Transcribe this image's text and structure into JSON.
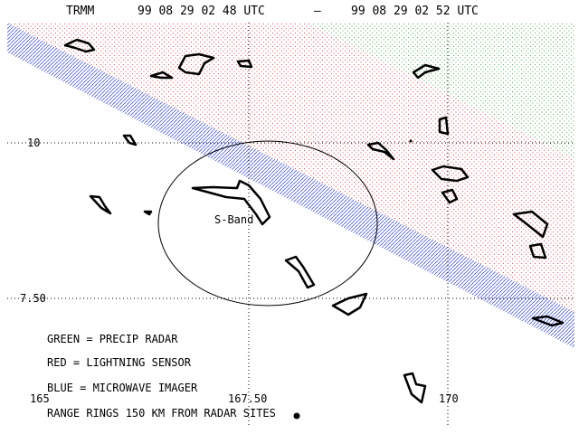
{
  "header": {
    "satellite": "TRMM",
    "start": "99 08 29 02 48 UTC",
    "separator": "–",
    "end": "99 08 29 02 52 UTC"
  },
  "grid": {
    "lat_labels": [
      "10",
      "7.50"
    ],
    "lon_labels": [
      "165",
      "167.50",
      "170"
    ]
  },
  "radar_site": "S-Band",
  "legend": [
    "GREEN = PRECIP RADAR",
    "RED = LIGHTNING SENSOR",
    "BLUE = MICROWAVE IMAGER",
    "RANGE RINGS 150 KM FROM RADAR SITES"
  ]
}
